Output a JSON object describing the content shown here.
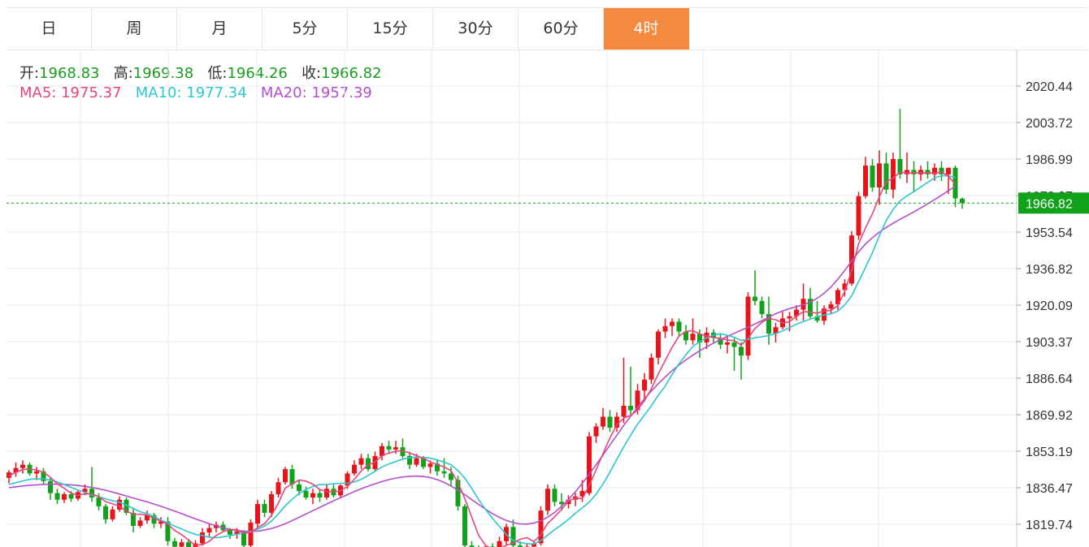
{
  "tabs": [
    {
      "label": "日",
      "active": false
    },
    {
      "label": "周",
      "active": false
    },
    {
      "label": "月",
      "active": false
    },
    {
      "label": "5分",
      "active": false
    },
    {
      "label": "15分",
      "active": false
    },
    {
      "label": "30分",
      "active": false
    },
    {
      "label": "60分",
      "active": false
    },
    {
      "label": "4时",
      "active": true
    }
  ],
  "ohlc": {
    "open_label": "开:",
    "open": "1968.83",
    "high_label": "高:",
    "high": "1969.38",
    "low_label": "低:",
    "low": "1964.26",
    "close_label": "收:",
    "close": "1966.82"
  },
  "ma": {
    "ma5_label": "MA5:",
    "ma5": "1975.37",
    "ma10_label": "MA10:",
    "ma10": "1977.34",
    "ma20_label": "MA20:",
    "ma20": "1957.39"
  },
  "colors": {
    "up": "#e8141b",
    "down": "#12a11a",
    "ma5": "#e8457a",
    "ma10": "#2ec6cf",
    "ma20": "#b54fc9",
    "accent": "#f5893f",
    "price_tag": "#12a11a"
  },
  "chart_data": {
    "type": "candlestick",
    "y_ticks": [
      "2020.44",
      "2003.72",
      "1986.99",
      "1970.27",
      "1953.54",
      "1936.82",
      "1920.09",
      "1903.37",
      "1886.64",
      "1869.92",
      "1853.19",
      "1836.47",
      "1819.74"
    ],
    "ylim": [
      1811,
      2035
    ],
    "last_price": 1966.82,
    "last_price_label": "1966.82",
    "candles": [
      [
        1841.0,
        1844.5,
        1838.5,
        1843.5
      ],
      [
        1843.5,
        1848.0,
        1841.5,
        1845.5
      ],
      [
        1845.5,
        1849.0,
        1843.0,
        1847.0
      ],
      [
        1847.0,
        1848.0,
        1842.0,
        1843.0
      ],
      [
        1843.0,
        1846.0,
        1840.0,
        1844.0
      ],
      [
        1844.0,
        1845.5,
        1838.0,
        1839.5
      ],
      [
        1839.5,
        1841.0,
        1831.0,
        1834.0
      ],
      [
        1834.0,
        1836.0,
        1829.0,
        1831.0
      ],
      [
        1831.0,
        1834.5,
        1829.5,
        1833.5
      ],
      [
        1833.5,
        1835.0,
        1830.0,
        1831.5
      ],
      [
        1831.5,
        1835.5,
        1830.5,
        1834.5
      ],
      [
        1834.5,
        1838.0,
        1833.0,
        1836.0
      ],
      [
        1836.0,
        1846.0,
        1830.0,
        1832.0
      ],
      [
        1832.0,
        1834.0,
        1826.0,
        1828.0
      ],
      [
        1828.0,
        1829.0,
        1820.0,
        1822.0
      ],
      [
        1822.0,
        1828.0,
        1821.0,
        1826.5
      ],
      [
        1826.5,
        1832.5,
        1825.5,
        1831.0
      ],
      [
        1831.0,
        1832.0,
        1824.0,
        1825.0
      ],
      [
        1825.0,
        1827.0,
        1816.0,
        1819.0
      ],
      [
        1819.0,
        1823.0,
        1818.0,
        1821.5
      ],
      [
        1821.5,
        1826.0,
        1820.0,
        1824.0
      ],
      [
        1824.0,
        1825.0,
        1818.0,
        1820.0
      ],
      [
        1820.0,
        1823.0,
        1818.0,
        1821.0
      ],
      [
        1821.0,
        1823.0,
        1810.0,
        1812.0
      ],
      [
        1812.0,
        1813.5,
        1807.0,
        1809.5
      ],
      [
        1809.5,
        1813.0,
        1808.0,
        1811.5
      ],
      [
        1811.5,
        1813.0,
        1807.0,
        1808.0
      ],
      [
        1808.0,
        1812.5,
        1807.0,
        1811.0
      ],
      [
        1811.0,
        1818.0,
        1810.0,
        1816.0
      ],
      [
        1816.0,
        1820.0,
        1814.0,
        1818.0
      ],
      [
        1818.0,
        1821.0,
        1816.0,
        1819.5
      ],
      [
        1819.5,
        1821.0,
        1816.0,
        1817.0
      ],
      [
        1817.0,
        1818.0,
        1813.0,
        1815.0
      ],
      [
        1815.0,
        1818.0,
        1813.0,
        1816.5
      ],
      [
        1816.5,
        1817.0,
        1809.0,
        1810.0
      ],
      [
        1810.0,
        1822.0,
        1809.0,
        1820.5
      ],
      [
        1820.0,
        1831.0,
        1818.0,
        1829.0
      ],
      [
        1829.0,
        1831.0,
        1823.0,
        1825.0
      ],
      [
        1825.0,
        1835.0,
        1823.0,
        1833.5
      ],
      [
        1833.5,
        1841.0,
        1832.0,
        1839.0
      ],
      [
        1839.0,
        1846.0,
        1838.0,
        1845.0
      ],
      [
        1845.0,
        1847.0,
        1836.0,
        1838.0
      ],
      [
        1838.0,
        1840.0,
        1833.0,
        1835.0
      ],
      [
        1835.0,
        1837.0,
        1831.0,
        1832.0
      ],
      [
        1832.0,
        1836.0,
        1829.0,
        1834.0
      ],
      [
        1834.0,
        1836.0,
        1830.0,
        1832.0
      ],
      [
        1832.0,
        1838.0,
        1831.0,
        1836.0
      ],
      [
        1836.0,
        1838.0,
        1832.0,
        1833.0
      ],
      [
        1833.0,
        1838.0,
        1832.0,
        1837.5
      ],
      [
        1837.5,
        1844.0,
        1836.0,
        1843.0
      ],
      [
        1843.0,
        1849.0,
        1842.0,
        1847.0
      ],
      [
        1847.0,
        1852.0,
        1845.0,
        1850.0
      ],
      [
        1850.0,
        1852.0,
        1844.0,
        1845.0
      ],
      [
        1845.0,
        1853.0,
        1844.0,
        1851.0
      ],
      [
        1851.0,
        1857.0,
        1849.0,
        1855.5
      ],
      [
        1855.5,
        1858.0,
        1852.0,
        1854.0
      ],
      [
        1854.0,
        1858.0,
        1852.0,
        1855.0
      ],
      [
        1855.0,
        1859.0,
        1850.0,
        1851.0
      ],
      [
        1851.0,
        1853.0,
        1845.0,
        1847.0
      ],
      [
        1847.0,
        1852.0,
        1846.0,
        1850.0
      ],
      [
        1850.0,
        1851.0,
        1845.0,
        1846.0
      ],
      [
        1846.0,
        1849.0,
        1843.0,
        1847.5
      ],
      [
        1847.5,
        1849.0,
        1842.0,
        1844.0
      ],
      [
        1844.0,
        1850.0,
        1841.0,
        1843.0
      ],
      [
        1843.0,
        1846.0,
        1837.0,
        1840.0
      ],
      [
        1840.0,
        1842.0,
        1826.0,
        1828.0
      ],
      [
        1828.0,
        1829.0,
        1808.0,
        1810.0
      ],
      [
        1810.0,
        1812.0,
        1807.0,
        1808.5
      ],
      [
        1808.5,
        1810.0,
        1806.0,
        1807.0
      ],
      [
        1807.0,
        1810.0,
        1804.0,
        1809.5
      ],
      [
        1809.5,
        1811.0,
        1804.0,
        1806.0
      ],
      [
        1806.0,
        1814.0,
        1805.0,
        1812.0
      ],
      [
        1812.0,
        1820.0,
        1810.0,
        1818.5
      ],
      [
        1818.5,
        1822.0,
        1809.0,
        1810.0
      ],
      [
        1810.0,
        1812.0,
        1807.0,
        1808.0
      ],
      [
        1808.0,
        1811.0,
        1806.0,
        1809.5
      ],
      [
        1809.5,
        1812.0,
        1808.0,
        1811.0
      ],
      [
        1811.0,
        1828.0,
        1810.0,
        1826.0
      ],
      [
        1826.0,
        1838.0,
        1824.0,
        1836.0
      ],
      [
        1836.0,
        1838.0,
        1828.0,
        1830.0
      ],
      [
        1830.0,
        1834.0,
        1826.0,
        1829.0
      ],
      [
        1829.0,
        1833.0,
        1827.0,
        1831.0
      ],
      [
        1831.0,
        1834.0,
        1828.0,
        1832.5
      ],
      [
        1832.5,
        1840.0,
        1830.0,
        1835.0
      ],
      [
        1834.0,
        1862.0,
        1833.0,
        1860.0
      ],
      [
        1860.0,
        1866.0,
        1857.0,
        1864.5
      ],
      [
        1864.5,
        1873.0,
        1863.0,
        1869.0
      ],
      [
        1869.0,
        1872.0,
        1862.0,
        1864.0
      ],
      [
        1864.0,
        1871.0,
        1862.0,
        1869.0
      ],
      [
        1869.0,
        1896.0,
        1866.0,
        1874.0
      ],
      [
        1874.0,
        1892.0,
        1870.0,
        1872.0
      ],
      [
        1872.0,
        1884.0,
        1870.0,
        1881.0
      ],
      [
        1881.0,
        1889.0,
        1876.0,
        1886.0
      ],
      [
        1886.0,
        1898.0,
        1884.0,
        1896.0
      ],
      [
        1896.0,
        1909.0,
        1893.0,
        1908.0
      ],
      [
        1908.0,
        1914.0,
        1905.0,
        1910.5
      ],
      [
        1910.5,
        1914.0,
        1906.0,
        1912.5
      ],
      [
        1912.5,
        1914.0,
        1906.0,
        1908.0
      ],
      [
        1908.0,
        1911.0,
        1902.0,
        1904.0
      ],
      [
        1904.0,
        1914.0,
        1902.0,
        1907.0
      ],
      [
        1907.0,
        1909.0,
        1896.0,
        1903.0
      ],
      [
        1903.0,
        1910.0,
        1900.0,
        1907.5
      ],
      [
        1907.5,
        1909.0,
        1903.0,
        1905.0
      ],
      [
        1905.0,
        1907.0,
        1900.0,
        1902.0
      ],
      [
        1902.0,
        1906.0,
        1898.0,
        1903.0
      ],
      [
        1903.0,
        1905.0,
        1890.0,
        1901.0
      ],
      [
        1901.0,
        1903.0,
        1886.0,
        1897.0
      ],
      [
        1897.0,
        1926.0,
        1895.0,
        1924.0
      ],
      [
        1924.0,
        1936.0,
        1920.0,
        1922.0
      ],
      [
        1922.0,
        1924.0,
        1914.0,
        1916.0
      ],
      [
        1916.0,
        1924.0,
        1902.0,
        1907.0
      ],
      [
        1907.0,
        1912.0,
        1903.0,
        1910.0
      ],
      [
        1910.0,
        1917.0,
        1909.0,
        1914.0
      ],
      [
        1914.0,
        1917.0,
        1908.0,
        1915.0
      ],
      [
        1915.0,
        1920.0,
        1913.0,
        1918.0
      ],
      [
        1918.0,
        1930.0,
        1913.0,
        1923.0
      ],
      [
        1923.0,
        1928.0,
        1914.0,
        1915.0
      ],
      [
        1915.0,
        1922.0,
        1912.0,
        1913.0
      ],
      [
        1913.0,
        1920.0,
        1911.0,
        1918.5
      ],
      [
        1918.5,
        1922.0,
        1916.0,
        1920.5
      ],
      [
        1920.5,
        1928.0,
        1918.0,
        1927.0
      ],
      [
        1927.0,
        1932.0,
        1924.0,
        1930.0
      ],
      [
        1930.0,
        1954.0,
        1929.0,
        1952.0
      ],
      [
        1952.0,
        1972.0,
        1950.0,
        1970.0
      ],
      [
        1970.0,
        1988.0,
        1969.0,
        1984.0
      ],
      [
        1984.0,
        1987.0,
        1972.0,
        1974.0
      ],
      [
        1974.0,
        1991.0,
        1966.0,
        1985.0
      ],
      [
        1985.0,
        1990.0,
        1971.0,
        1973.0
      ],
      [
        1973.0,
        1990.0,
        1969.0,
        1987.0
      ],
      [
        1987.0,
        2010.0,
        1978.0,
        1980.0
      ],
      [
        1980.0,
        1990.0,
        1976.0,
        1982.0
      ],
      [
        1982.0,
        1986.0,
        1972.0,
        1980.0
      ],
      [
        1980.0,
        1984.0,
        1977.0,
        1982.0
      ],
      [
        1982.0,
        1986.0,
        1978.0,
        1980.0
      ],
      [
        1980.0,
        1985.0,
        1977.0,
        1983.0
      ],
      [
        1983.0,
        1986.0,
        1977.0,
        1980.0
      ],
      [
        1980.0,
        1983.0,
        1971.0,
        1983.0
      ],
      [
        1983.0,
        1984.0,
        1965.0,
        1969.0
      ],
      [
        1968.83,
        1969.38,
        1964.26,
        1966.82
      ]
    ],
    "ma5": [
      1842.0,
      1843.5,
      1844.8,
      1845.0,
      1844.6,
      1843.6,
      1841.2,
      1838.3,
      1836.2,
      1834.0,
      1833.0,
      1833.7,
      1833.6,
      1832.4,
      1830.1,
      1829.1,
      1828.0,
      1825.8,
      1824.3,
      1824.4,
      1824.0,
      1822.4,
      1821.2,
      1819.8,
      1816.9,
      1815.0,
      1812.6,
      1810.0,
      1810.4,
      1811.9,
      1814.6,
      1816.4,
      1817.3,
      1817.3,
      1815.7,
      1816.0,
      1818.2,
      1820.0,
      1823.8,
      1829.4,
      1836.3,
      1838.2,
      1840.0,
      1839.5,
      1838.1,
      1835.6,
      1834.8,
      1834.6,
      1835.0,
      1837.1,
      1840.3,
      1844.2,
      1846.9,
      1848.3,
      1851.2,
      1852.3,
      1853.2,
      1853.4,
      1852.4,
      1851.2,
      1849.9,
      1848.3,
      1847.1,
      1846.0,
      1844.2,
      1838.9,
      1831.5,
      1823.0,
      1814.6,
      1810.1,
      1808.1,
      1808.5,
      1810.1,
      1811.2,
      1812.9,
      1813.6,
      1811.8,
      1815.1,
      1820.2,
      1823.2,
      1826.5,
      1830.4,
      1831.8,
      1831.5,
      1837.5,
      1844.6,
      1852.2,
      1859.3,
      1865.3,
      1868.3,
      1869.6,
      1872.0,
      1876.4,
      1881.8,
      1888.6,
      1894.7,
      1900.8,
      1905.9,
      1908.1,
      1908.4,
      1906.9,
      1905.9,
      1905.3,
      1904.9,
      1904.1,
      1903.9,
      1901.8,
      1905.0,
      1909.4,
      1912.2,
      1914.0,
      1913.4,
      1912.0,
      1912.5,
      1915.0,
      1917.1,
      1916.9,
      1916.4,
      1917.4,
      1917.7,
      1919.9,
      1926.4,
      1936.0,
      1948.2,
      1955.5,
      1961.9,
      1969.7,
      1976.7,
      1978.2,
      1981.0,
      1980.6,
      1980.6,
      1980.8,
      1980.6,
      1980.6,
      1981.0,
      1979.2,
      1975.4
    ],
    "ma10": [
      1838.0,
      1838.8,
      1839.6,
      1840.3,
      1840.6,
      1840.5,
      1840.1,
      1839.1,
      1838.0,
      1836.6,
      1835.4,
      1834.4,
      1833.2,
      1832.4,
      1831.4,
      1830.5,
      1829.8,
      1828.5,
      1827.0,
      1825.5,
      1824.6,
      1823.4,
      1821.6,
      1820.4,
      1818.9,
      1817.6,
      1816.2,
      1815.1,
      1814.6,
      1813.8,
      1813.6,
      1814.0,
      1814.5,
      1815.2,
      1815.8,
      1816.3,
      1817.5,
      1819.0,
      1821.2,
      1824.5,
      1828.2,
      1831.2,
      1833.9,
      1835.7,
      1837.1,
      1837.9,
      1838.0,
      1838.3,
      1838.5,
      1838.5,
      1839.1,
      1840.3,
      1842.1,
      1844.0,
      1846.0,
      1847.3,
      1848.5,
      1849.6,
      1850.2,
      1850.5,
      1850.3,
      1850.0,
      1849.2,
      1848.2,
      1847.0,
      1844.3,
      1840.8,
      1836.2,
      1831.0,
      1826.5,
      1822.5,
      1818.8,
      1815.0,
      1812.4,
      1811.3,
      1810.9,
      1810.7,
      1812.3,
      1814.8,
      1817.3,
      1819.5,
      1822.0,
      1824.8,
      1827.3,
      1829.9,
      1833.5,
      1838.2,
      1843.6,
      1849.5,
      1855.2,
      1860.5,
      1865.6,
      1869.8,
      1874.0,
      1878.8,
      1883.0,
      1888.4,
      1893.2,
      1897.3,
      1901.2,
      1903.4,
      1905.1,
      1906.4,
      1907.0,
      1906.3,
      1905.4,
      1903.9,
      1904.4,
      1905.2,
      1905.6,
      1906.2,
      1907.1,
      1908.3,
      1909.8,
      1911.4,
      1912.6,
      1913.7,
      1914.7,
      1915.6,
      1916.1,
      1917.4,
      1920.2,
      1924.4,
      1930.9,
      1937.4,
      1944.1,
      1951.9,
      1958.8,
      1963.9,
      1967.9,
      1970.1,
      1972.1,
      1974.2,
      1976.3,
      1978.4,
      1979.3,
      1979.3,
      1978.6
    ],
    "ma20": [
      1836.5,
      1836.9,
      1837.3,
      1837.6,
      1837.8,
      1838.0,
      1838.1,
      1838.1,
      1838.0,
      1837.8,
      1837.5,
      1837.1,
      1836.6,
      1836.0,
      1835.3,
      1834.5,
      1833.6,
      1832.7,
      1831.8,
      1830.9,
      1830.0,
      1829.0,
      1828.0,
      1826.9,
      1825.8,
      1824.6,
      1823.4,
      1822.2,
      1821.1,
      1820.0,
      1819.0,
      1818.1,
      1817.4,
      1816.9,
      1816.6,
      1816.5,
      1816.6,
      1817.1,
      1817.8,
      1818.8,
      1820.0,
      1821.4,
      1822.9,
      1824.5,
      1826.0,
      1827.5,
      1829.0,
      1830.5,
      1831.9,
      1833.3,
      1834.7,
      1836.0,
      1837.2,
      1838.3,
      1839.3,
      1840.2,
      1840.9,
      1841.4,
      1841.7,
      1841.8,
      1841.6,
      1841.1,
      1840.2,
      1838.9,
      1837.3,
      1835.4,
      1833.3,
      1831.0,
      1828.8,
      1826.6,
      1824.6,
      1822.9,
      1821.5,
      1820.5,
      1819.9,
      1819.8,
      1820.3,
      1821.3,
      1823.0,
      1825.2,
      1827.9,
      1831.1,
      1834.6,
      1838.5,
      1842.7,
      1847.0,
      1851.5,
      1856.0,
      1860.5,
      1865.0,
      1869.2,
      1873.3,
      1877.2,
      1880.8,
      1884.1,
      1887.2,
      1890.1,
      1892.7,
      1895.0,
      1897.2,
      1899.2,
      1901.0,
      1902.7,
      1904.3,
      1905.8,
      1907.2,
      1908.6,
      1910.0,
      1911.5,
      1913.0,
      1914.6,
      1916.2,
      1917.4,
      1918.5,
      1919.4,
      1920.3,
      1921.5,
      1923.2,
      1925.5,
      1928.4,
      1932.0,
      1936.0,
      1940.3,
      1944.5,
      1948.1,
      1951.0,
      1953.5,
      1955.7,
      1957.6,
      1959.4,
      1961.1,
      1962.8,
      1964.6,
      1966.5,
      1968.4,
      1970.4,
      1972.5,
      1974.5
    ]
  }
}
